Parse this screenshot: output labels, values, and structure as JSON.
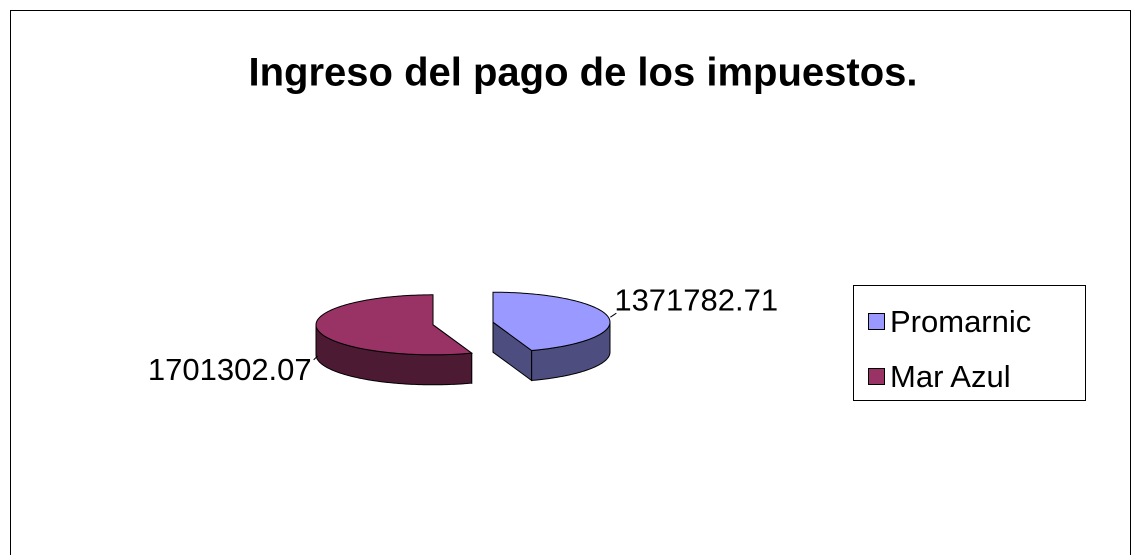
{
  "chart_data": {
    "type": "pie",
    "title": "Ingreso del pago de los impuestos.",
    "categories": [
      "Promarnic",
      "Mar Azul"
    ],
    "values": [
      1371782.71,
      1701302.07
    ],
    "colors": [
      "#9999ff",
      "#993366"
    ],
    "legend": "right"
  }
}
